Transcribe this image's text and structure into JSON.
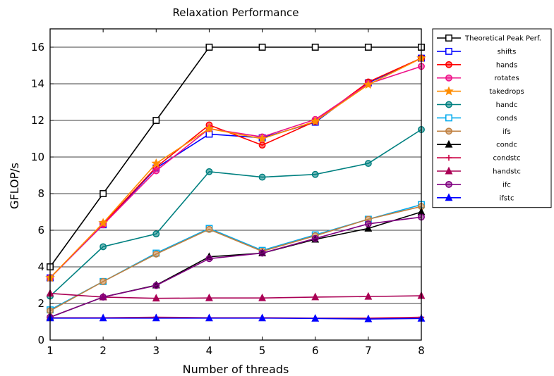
{
  "chart_data": {
    "type": "line",
    "title": "Relaxation Performance",
    "xlabel": "Number of threads",
    "ylabel": "GFLOP/s",
    "xlim": [
      1,
      8
    ],
    "ylim": [
      0,
      17
    ],
    "xticks": [
      1,
      2,
      3,
      4,
      5,
      6,
      7,
      8
    ],
    "yticks": [
      0,
      2,
      4,
      6,
      8,
      10,
      12,
      14,
      16
    ],
    "grid": "horizontal",
    "legend_position": "outside-right",
    "x": [
      1,
      2,
      3,
      4,
      5,
      6,
      7,
      8
    ],
    "series": [
      {
        "name": "Theoretical Peak Perf.",
        "color": "#000000",
        "marker": "square",
        "values": [
          4,
          8,
          12,
          16,
          16,
          16,
          16,
          16
        ]
      },
      {
        "name": "shifts",
        "color": "#0000ff",
        "marker": "square",
        "values": [
          3.4,
          6.3,
          9.4,
          11.25,
          11.05,
          11.9,
          14.05,
          15.4
        ]
      },
      {
        "name": "hands",
        "color": "#ff0000",
        "marker": "circle",
        "values": [
          3.4,
          6.35,
          9.45,
          11.75,
          10.65,
          11.95,
          14.1,
          15.4
        ]
      },
      {
        "name": "rotates",
        "color": "#ee1188",
        "marker": "circle",
        "values": [
          3.4,
          6.3,
          9.25,
          11.55,
          11.1,
          12.05,
          14.0,
          14.95
        ]
      },
      {
        "name": "takedrops",
        "color": "#ff8c00",
        "marker": "star",
        "values": [
          3.4,
          6.4,
          9.65,
          11.55,
          11.0,
          11.95,
          13.95,
          15.4
        ]
      },
      {
        "name": "handc",
        "color": "#008080",
        "marker": "circle",
        "values": [
          2.4,
          5.1,
          5.8,
          9.2,
          8.9,
          9.05,
          9.65,
          11.5
        ]
      },
      {
        "name": "conds",
        "color": "#00aaee",
        "marker": "square",
        "values": [
          1.65,
          3.2,
          4.75,
          6.1,
          4.9,
          5.75,
          6.6,
          7.4
        ]
      },
      {
        "name": "ifs",
        "color": "#c08040",
        "marker": "circle",
        "values": [
          1.6,
          3.2,
          4.7,
          6.05,
          4.85,
          5.7,
          6.6,
          7.3
        ]
      },
      {
        "name": "condc",
        "color": "#000000",
        "marker": "triangle",
        "values": [
          1.25,
          2.35,
          3.0,
          4.55,
          4.75,
          5.5,
          6.1,
          7.0
        ]
      },
      {
        "name": "condstc",
        "color": "#cc0044",
        "marker": "plus",
        "values": [
          1.22,
          1.22,
          1.25,
          1.22,
          1.22,
          1.2,
          1.2,
          1.25
        ]
      },
      {
        "name": "handstc",
        "color": "#aa0055",
        "marker": "triangle",
        "values": [
          2.55,
          2.35,
          2.28,
          2.3,
          2.3,
          2.35,
          2.38,
          2.42
        ]
      },
      {
        "name": "ifc",
        "color": "#800080",
        "marker": "circle",
        "values": [
          1.25,
          2.35,
          2.98,
          4.45,
          4.75,
          5.55,
          6.35,
          6.72
        ]
      },
      {
        "name": "ifstc",
        "color": "#0000ff",
        "marker": "triangle",
        "values": [
          1.2,
          1.2,
          1.2,
          1.2,
          1.2,
          1.18,
          1.15,
          1.18
        ]
      }
    ]
  }
}
